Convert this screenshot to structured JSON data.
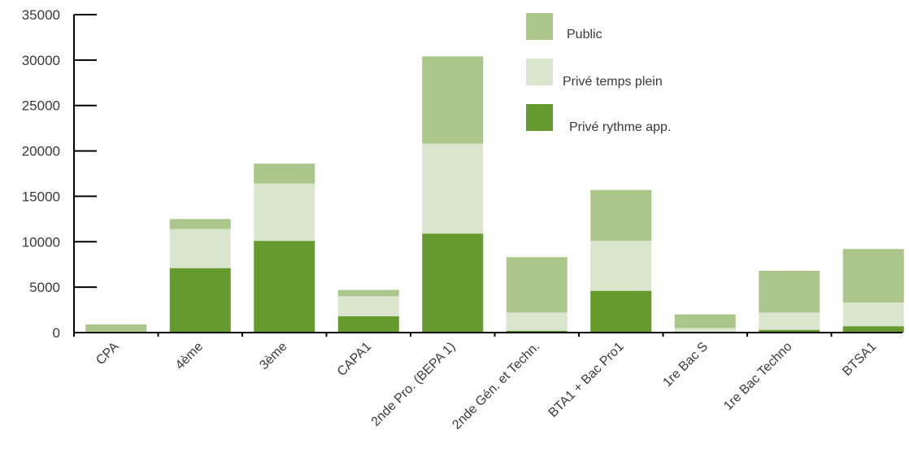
{
  "chart_data": {
    "type": "bar",
    "stacked": true,
    "categories": [
      "CPA",
      "4ème",
      "3ème",
      "CAPA1",
      "2nde Pro. (BEPA 1)",
      "2nde Gén. et Techn.",
      "BTA1 + Bac Pro1",
      "1re Bac S",
      "1re Bac Techno",
      "BTSA1"
    ],
    "series": [
      {
        "name": "Privé rythme app.",
        "color": "#659a2e",
        "values": [
          0,
          7100,
          10100,
          1800,
          10900,
          200,
          4600,
          100,
          300,
          700
        ]
      },
      {
        "name": "Privé temps plein",
        "color": "#d9e5cd",
        "values": [
          100,
          4300,
          6300,
          2200,
          9900,
          2000,
          5500,
          400,
          1900,
          2600
        ]
      },
      {
        "name": "Public",
        "color": "#abc68b",
        "values": [
          800,
          1100,
          2200,
          700,
          9600,
          6100,
          5600,
          1500,
          4600,
          5900
        ]
      }
    ],
    "ylim": [
      0,
      35000
    ],
    "yticks": [
      0,
      5000,
      10000,
      15000,
      20000,
      25000,
      30000,
      35000
    ],
    "ytick_labels": [
      "0",
      "5000",
      "10000",
      "15000",
      "20000",
      "25000",
      "30000",
      "35000"
    ],
    "legend_position": "top-right",
    "legend": [
      {
        "label": "Public",
        "color": "#abc68b"
      },
      {
        "label": "Privé temps plein",
        "color": "#d9e5cd"
      },
      {
        "label": "Privé rythme app.",
        "color": "#659a2e"
      }
    ],
    "grid": false,
    "title": "",
    "xlabel": "",
    "ylabel": ""
  }
}
